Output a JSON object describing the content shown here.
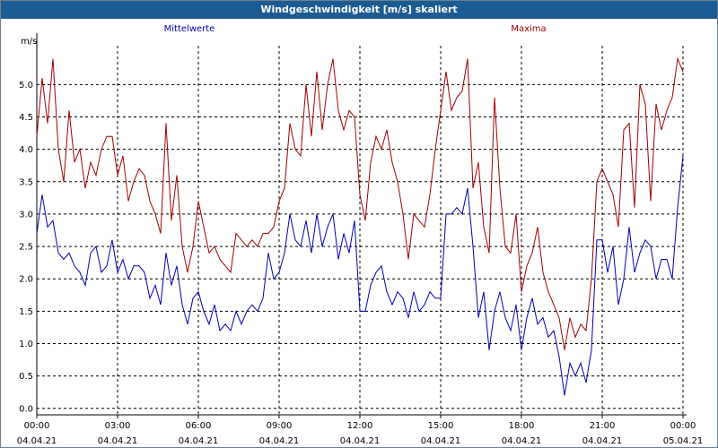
{
  "window": {
    "title": "Windgeschwindigkeit [m/s] skaliert"
  },
  "colors": {
    "titlebar": "#1d5c92",
    "mean": "#0000b4",
    "max": "#a00000",
    "grid": "#000000"
  },
  "chart_data": {
    "type": "line",
    "title": "Windgeschwindigkeit [m/s] skaliert",
    "ylabel": "m/s",
    "ylim": [
      -0.1,
      5.6
    ],
    "xlim": [
      0,
      24
    ],
    "grid": true,
    "x_ticks": [
      {
        "time": "00:00",
        "date": "04.04.21",
        "x": 0
      },
      {
        "time": "03:00",
        "date": "04.04.21",
        "x": 3
      },
      {
        "time": "06:00",
        "date": "04.04.21",
        "x": 6
      },
      {
        "time": "09:00",
        "date": "04.04.21",
        "x": 9
      },
      {
        "time": "12:00",
        "date": "04.04.21",
        "x": 12
      },
      {
        "time": "15:00",
        "date": "04.04.21",
        "x": 15
      },
      {
        "time": "18:00",
        "date": "04.04.21",
        "x": 18
      },
      {
        "time": "21:00",
        "date": "04.04.21",
        "x": 21
      },
      {
        "time": "00:00",
        "date": "05.04.21",
        "x": 24
      }
    ],
    "y_ticks": [
      "0.0",
      "0.5",
      "1.0",
      "1.5",
      "2.0",
      "2.5",
      "3.0",
      "3.5",
      "4.0",
      "4.5",
      "5.0"
    ],
    "series": [
      {
        "name": "Mittelwerte",
        "color": "#0000b4",
        "points": [
          [
            0,
            2.7
          ],
          [
            0.2,
            3.3
          ],
          [
            0.4,
            2.8
          ],
          [
            0.6,
            2.9
          ],
          [
            0.8,
            2.4
          ],
          [
            1.0,
            2.3
          ],
          [
            1.2,
            2.4
          ],
          [
            1.4,
            2.2
          ],
          [
            1.6,
            2.1
          ],
          [
            1.8,
            1.9
          ],
          [
            2.0,
            2.4
          ],
          [
            2.2,
            2.5
          ],
          [
            2.4,
            2.1
          ],
          [
            2.6,
            2.2
          ],
          [
            2.8,
            2.6
          ],
          [
            3.0,
            2.1
          ],
          [
            3.2,
            2.3
          ],
          [
            3.4,
            2.0
          ],
          [
            3.6,
            2.2
          ],
          [
            3.8,
            2.2
          ],
          [
            4.0,
            2.1
          ],
          [
            4.2,
            1.7
          ],
          [
            4.4,
            1.9
          ],
          [
            4.6,
            1.6
          ],
          [
            4.8,
            2.4
          ],
          [
            5.0,
            1.9
          ],
          [
            5.2,
            2.2
          ],
          [
            5.4,
            1.6
          ],
          [
            5.6,
            1.3
          ],
          [
            5.8,
            1.7
          ],
          [
            6.0,
            1.8
          ],
          [
            6.2,
            1.5
          ],
          [
            6.4,
            1.3
          ],
          [
            6.6,
            1.6
          ],
          [
            6.8,
            1.2
          ],
          [
            7.0,
            1.3
          ],
          [
            7.2,
            1.2
          ],
          [
            7.4,
            1.5
          ],
          [
            7.6,
            1.3
          ],
          [
            7.8,
            1.5
          ],
          [
            8.0,
            1.6
          ],
          [
            8.2,
            1.5
          ],
          [
            8.4,
            1.7
          ],
          [
            8.6,
            2.4
          ],
          [
            8.8,
            2.0
          ],
          [
            9.0,
            2.1
          ],
          [
            9.2,
            2.4
          ],
          [
            9.4,
            3.0
          ],
          [
            9.6,
            2.6
          ],
          [
            9.8,
            2.5
          ],
          [
            10.0,
            2.9
          ],
          [
            10.2,
            2.4
          ],
          [
            10.4,
            3.0
          ],
          [
            10.6,
            2.5
          ],
          [
            10.8,
            2.8
          ],
          [
            11.0,
            3.0
          ],
          [
            11.2,
            2.3
          ],
          [
            11.4,
            2.7
          ],
          [
            11.6,
            2.4
          ],
          [
            11.8,
            2.9
          ],
          [
            12.0,
            1.5
          ],
          [
            12.2,
            1.5
          ],
          [
            12.4,
            1.9
          ],
          [
            12.6,
            2.1
          ],
          [
            12.8,
            2.2
          ],
          [
            13.0,
            1.8
          ],
          [
            13.2,
            1.6
          ],
          [
            13.4,
            1.8
          ],
          [
            13.6,
            1.7
          ],
          [
            13.8,
            1.4
          ],
          [
            14.0,
            1.8
          ],
          [
            14.2,
            1.5
          ],
          [
            14.4,
            1.6
          ],
          [
            14.6,
            1.8
          ],
          [
            14.8,
            1.7
          ],
          [
            15.0,
            1.7
          ],
          [
            15.2,
            3.0
          ],
          [
            15.4,
            3.0
          ],
          [
            15.6,
            3.1
          ],
          [
            15.8,
            3.0
          ],
          [
            16.0,
            3.4
          ],
          [
            16.2,
            2.5
          ],
          [
            16.4,
            1.4
          ],
          [
            16.6,
            1.8
          ],
          [
            16.8,
            0.9
          ],
          [
            17.0,
            1.5
          ],
          [
            17.2,
            1.8
          ],
          [
            17.4,
            1.4
          ],
          [
            17.6,
            1.2
          ],
          [
            17.8,
            1.6
          ],
          [
            18.0,
            0.9
          ],
          [
            18.2,
            1.4
          ],
          [
            18.4,
            1.7
          ],
          [
            18.6,
            1.3
          ],
          [
            18.8,
            1.4
          ],
          [
            19.0,
            1.1
          ],
          [
            19.2,
            1.2
          ],
          [
            19.4,
            0.8
          ],
          [
            19.6,
            0.2
          ],
          [
            19.8,
            0.7
          ],
          [
            20.0,
            0.5
          ],
          [
            20.2,
            0.7
          ],
          [
            20.4,
            0.4
          ],
          [
            20.6,
            0.9
          ],
          [
            20.8,
            2.6
          ],
          [
            21.0,
            2.6
          ],
          [
            21.2,
            2.1
          ],
          [
            21.4,
            2.5
          ],
          [
            21.6,
            1.6
          ],
          [
            21.8,
            2.0
          ],
          [
            22.0,
            2.8
          ],
          [
            22.2,
            2.1
          ],
          [
            22.4,
            2.4
          ],
          [
            22.6,
            2.6
          ],
          [
            22.8,
            2.5
          ],
          [
            23.0,
            2.0
          ],
          [
            23.2,
            2.3
          ],
          [
            23.4,
            2.3
          ],
          [
            23.6,
            2.0
          ],
          [
            23.8,
            3.1
          ],
          [
            24.0,
            3.9
          ]
        ]
      },
      {
        "name": "Maxima",
        "color": "#a00000",
        "points": [
          [
            0,
            4.2
          ],
          [
            0.2,
            5.1
          ],
          [
            0.4,
            4.4
          ],
          [
            0.6,
            5.4
          ],
          [
            0.8,
            4.0
          ],
          [
            1.0,
            3.5
          ],
          [
            1.2,
            4.6
          ],
          [
            1.4,
            3.8
          ],
          [
            1.6,
            4.0
          ],
          [
            1.8,
            3.4
          ],
          [
            2.0,
            3.8
          ],
          [
            2.2,
            3.6
          ],
          [
            2.4,
            4.0
          ],
          [
            2.6,
            4.2
          ],
          [
            2.8,
            4.2
          ],
          [
            3.0,
            3.6
          ],
          [
            3.2,
            3.9
          ],
          [
            3.4,
            3.2
          ],
          [
            3.6,
            3.5
          ],
          [
            3.8,
            3.7
          ],
          [
            4.0,
            3.6
          ],
          [
            4.2,
            3.2
          ],
          [
            4.4,
            3.0
          ],
          [
            4.6,
            2.7
          ],
          [
            4.8,
            4.4
          ],
          [
            5.0,
            2.9
          ],
          [
            5.2,
            3.6
          ],
          [
            5.4,
            2.5
          ],
          [
            5.6,
            2.1
          ],
          [
            5.8,
            2.5
          ],
          [
            6.0,
            3.2
          ],
          [
            6.2,
            2.8
          ],
          [
            6.4,
            2.4
          ],
          [
            6.6,
            2.5
          ],
          [
            6.8,
            2.3
          ],
          [
            7.0,
            2.2
          ],
          [
            7.2,
            2.1
          ],
          [
            7.4,
            2.7
          ],
          [
            7.6,
            2.6
          ],
          [
            7.8,
            2.5
          ],
          [
            8.0,
            2.6
          ],
          [
            8.2,
            2.5
          ],
          [
            8.4,
            2.7
          ],
          [
            8.6,
            2.7
          ],
          [
            8.8,
            2.8
          ],
          [
            9.0,
            3.2
          ],
          [
            9.2,
            3.4
          ],
          [
            9.4,
            4.4
          ],
          [
            9.6,
            4.0
          ],
          [
            9.8,
            3.9
          ],
          [
            10.0,
            5.0
          ],
          [
            10.2,
            4.2
          ],
          [
            10.4,
            5.2
          ],
          [
            10.6,
            4.3
          ],
          [
            10.8,
            5.0
          ],
          [
            11.0,
            5.4
          ],
          [
            11.2,
            4.6
          ],
          [
            11.4,
            4.3
          ],
          [
            11.6,
            4.6
          ],
          [
            11.8,
            4.5
          ],
          [
            12.0,
            3.3
          ],
          [
            12.2,
            2.9
          ],
          [
            12.4,
            3.8
          ],
          [
            12.6,
            4.2
          ],
          [
            12.8,
            4.0
          ],
          [
            13.0,
            4.3
          ],
          [
            13.2,
            3.8
          ],
          [
            13.4,
            3.5
          ],
          [
            13.6,
            3.0
          ],
          [
            13.8,
            2.3
          ],
          [
            14.0,
            3.0
          ],
          [
            14.2,
            2.9
          ],
          [
            14.4,
            2.8
          ],
          [
            14.6,
            3.3
          ],
          [
            14.8,
            4.0
          ],
          [
            15.0,
            4.6
          ],
          [
            15.2,
            5.2
          ],
          [
            15.4,
            4.6
          ],
          [
            15.6,
            4.8
          ],
          [
            15.8,
            4.9
          ],
          [
            16.0,
            5.4
          ],
          [
            16.2,
            3.4
          ],
          [
            16.4,
            3.8
          ],
          [
            16.6,
            2.8
          ],
          [
            16.8,
            2.4
          ],
          [
            17.0,
            4.8
          ],
          [
            17.2,
            3.4
          ],
          [
            17.4,
            2.5
          ],
          [
            17.6,
            2.4
          ],
          [
            17.8,
            3.0
          ],
          [
            18.0,
            1.8
          ],
          [
            18.2,
            2.2
          ],
          [
            18.4,
            2.4
          ],
          [
            18.6,
            2.8
          ],
          [
            18.8,
            2.1
          ],
          [
            19.0,
            1.8
          ],
          [
            19.2,
            1.6
          ],
          [
            19.4,
            1.4
          ],
          [
            19.6,
            0.9
          ],
          [
            19.8,
            1.4
          ],
          [
            20.0,
            1.1
          ],
          [
            20.2,
            1.3
          ],
          [
            20.4,
            1.2
          ],
          [
            20.6,
            2.0
          ],
          [
            20.8,
            3.5
          ],
          [
            21.0,
            3.7
          ],
          [
            21.2,
            3.5
          ],
          [
            21.4,
            3.3
          ],
          [
            21.6,
            2.8
          ],
          [
            21.8,
            4.3
          ],
          [
            22.0,
            4.4
          ],
          [
            22.2,
            3.1
          ],
          [
            22.4,
            5.0
          ],
          [
            22.6,
            4.7
          ],
          [
            22.8,
            3.2
          ],
          [
            23.0,
            4.7
          ],
          [
            23.2,
            4.3
          ],
          [
            23.4,
            4.6
          ],
          [
            23.6,
            4.8
          ],
          [
            23.8,
            5.4
          ],
          [
            24.0,
            5.2
          ]
        ]
      }
    ]
  }
}
